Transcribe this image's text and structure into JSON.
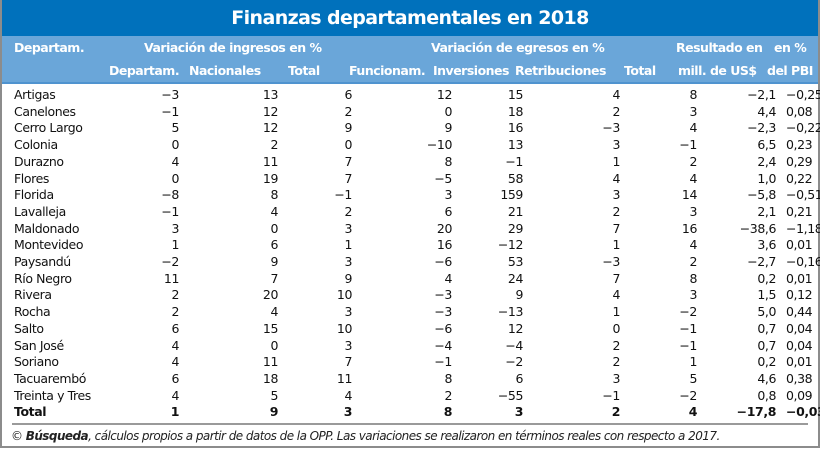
{
  "title": "Finanzas departamentales en 2018",
  "header": {
    "col_dept": "Departam.",
    "group_ingresos": "Variación de ingresos en %",
    "group_egresos": "Variación de egresos en %",
    "resultado_line1": "Resultado en",
    "resultado_line2": "mill. de US$",
    "pbi_line1": "en %",
    "pbi_line2": "del PBI",
    "sub": {
      "ing_departam": "Departam.",
      "ing_nacionales": "Nacionales",
      "ing_total": "Total",
      "eg_funcionam": "Funcionam.",
      "eg_inversiones": "Inversiones",
      "eg_retribuciones": "Retribuciones",
      "eg_total": "Total"
    }
  },
  "rows": [
    {
      "name": "Artigas",
      "ing_dep": "−3",
      "ing_nac": "13",
      "ing_tot": "6",
      "eg_fun": "12",
      "eg_inv": "15",
      "eg_ret": "4",
      "eg_tot": "8",
      "res": "−2,1",
      "pbi": "−0,25"
    },
    {
      "name": "Canelones",
      "ing_dep": "−1",
      "ing_nac": "12",
      "ing_tot": "2",
      "eg_fun": "0",
      "eg_inv": "18",
      "eg_ret": "2",
      "eg_tot": "3",
      "res": "4,4",
      "pbi": "0,08"
    },
    {
      "name": "Cerro Largo",
      "ing_dep": "5",
      "ing_nac": "12",
      "ing_tot": "9",
      "eg_fun": "9",
      "eg_inv": "16",
      "eg_ret": "−3",
      "eg_tot": "4",
      "res": "−2,3",
      "pbi": "−0,22"
    },
    {
      "name": "Colonia",
      "ing_dep": "0",
      "ing_nac": "2",
      "ing_tot": "0",
      "eg_fun": "−10",
      "eg_inv": "13",
      "eg_ret": "3",
      "eg_tot": "−1",
      "res": "6,5",
      "pbi": "0,23"
    },
    {
      "name": "Durazno",
      "ing_dep": "4",
      "ing_nac": "11",
      "ing_tot": "7",
      "eg_fun": "8",
      "eg_inv": "−1",
      "eg_ret": "1",
      "eg_tot": "2",
      "res": "2,4",
      "pbi": "0,29"
    },
    {
      "name": "Flores",
      "ing_dep": "0",
      "ing_nac": "19",
      "ing_tot": "7",
      "eg_fun": "−5",
      "eg_inv": "58",
      "eg_ret": "4",
      "eg_tot": "4",
      "res": "1,0",
      "pbi": "0,22"
    },
    {
      "name": "Florida",
      "ing_dep": "−8",
      "ing_nac": "8",
      "ing_tot": "−1",
      "eg_fun": "3",
      "eg_inv": "159",
      "eg_ret": "3",
      "eg_tot": "14",
      "res": "−5,8",
      "pbi": "−0,51"
    },
    {
      "name": "Lavalleja",
      "ing_dep": "−1",
      "ing_nac": "4",
      "ing_tot": "2",
      "eg_fun": "6",
      "eg_inv": "21",
      "eg_ret": "2",
      "eg_tot": "3",
      "res": "2,1",
      "pbi": "0,21"
    },
    {
      "name": "Maldonado",
      "ing_dep": "3",
      "ing_nac": "0",
      "ing_tot": "3",
      "eg_fun": "20",
      "eg_inv": "29",
      "eg_ret": "7",
      "eg_tot": "16",
      "res": "−38,6",
      "pbi": "−1,18"
    },
    {
      "name": "Montevideo",
      "ing_dep": "1",
      "ing_nac": "6",
      "ing_tot": "1",
      "eg_fun": "16",
      "eg_inv": "−12",
      "eg_ret": "1",
      "eg_tot": "4",
      "res": "3,6",
      "pbi": "0,01"
    },
    {
      "name": "Paysandú",
      "ing_dep": "−2",
      "ing_nac": "9",
      "ing_tot": "3",
      "eg_fun": "−6",
      "eg_inv": "53",
      "eg_ret": "−3",
      "eg_tot": "2",
      "res": "−2,7",
      "pbi": "−0,16"
    },
    {
      "name": "Río Negro",
      "ing_dep": "11",
      "ing_nac": "7",
      "ing_tot": "9",
      "eg_fun": "4",
      "eg_inv": "24",
      "eg_ret": "7",
      "eg_tot": "8",
      "res": "0,2",
      "pbi": "0,01"
    },
    {
      "name": "Rivera",
      "ing_dep": "2",
      "ing_nac": "20",
      "ing_tot": "10",
      "eg_fun": "−3",
      "eg_inv": "9",
      "eg_ret": "4",
      "eg_tot": "3",
      "res": "1,5",
      "pbi": "0,12"
    },
    {
      "name": "Rocha",
      "ing_dep": "2",
      "ing_nac": "4",
      "ing_tot": "3",
      "eg_fun": "−3",
      "eg_inv": "−13",
      "eg_ret": "1",
      "eg_tot": "−2",
      "res": "5,0",
      "pbi": "0,44"
    },
    {
      "name": "Salto",
      "ing_dep": "6",
      "ing_nac": "15",
      "ing_tot": "10",
      "eg_fun": "−6",
      "eg_inv": "12",
      "eg_ret": "0",
      "eg_tot": "−1",
      "res": "0,7",
      "pbi": "0,04"
    },
    {
      "name": "San José",
      "ing_dep": "4",
      "ing_nac": "0",
      "ing_tot": "3",
      "eg_fun": "−4",
      "eg_inv": "−4",
      "eg_ret": "2",
      "eg_tot": "−1",
      "res": "0,7",
      "pbi": "0,04"
    },
    {
      "name": "Soriano",
      "ing_dep": "4",
      "ing_nac": "11",
      "ing_tot": "7",
      "eg_fun": "−1",
      "eg_inv": "−2",
      "eg_ret": "2",
      "eg_tot": "1",
      "res": "0,2",
      "pbi": "0,01"
    },
    {
      "name": "Tacuarembó",
      "ing_dep": "6",
      "ing_nac": "18",
      "ing_tot": "11",
      "eg_fun": "8",
      "eg_inv": "6",
      "eg_ret": "3",
      "eg_tot": "5",
      "res": "4,6",
      "pbi": "0,38"
    },
    {
      "name": "Treinta y Tres",
      "ing_dep": "4",
      "ing_nac": "5",
      "ing_tot": "4",
      "eg_fun": "2",
      "eg_inv": "−55",
      "eg_ret": "−1",
      "eg_tot": "−2",
      "res": "0,8",
      "pbi": "0,09"
    }
  ],
  "total": {
    "name": "Total",
    "ing_dep": "1",
    "ing_nac": "9",
    "ing_tot": "3",
    "eg_fun": "8",
    "eg_inv": "3",
    "eg_ret": "2",
    "eg_tot": "4",
    "res": "−17,8",
    "pbi": "−0,03"
  },
  "footnote": {
    "prefix": "© ",
    "source": "Búsqueda",
    "text": ", cálculos propios a partir de datos de la OPP. Las variaciones se realizaron en términos reales con respecto a 2017."
  },
  "colors": {
    "title_bg": "#0071bc",
    "header_bg": "#6aa6d9",
    "text": "#111111"
  }
}
